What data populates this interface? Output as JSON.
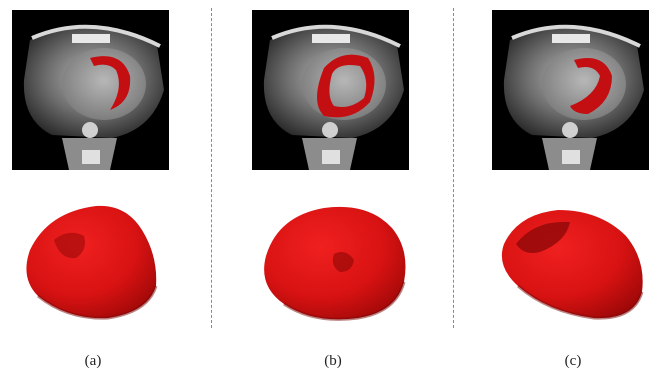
{
  "panels": [
    {
      "caption": "(a)"
    },
    {
      "caption": "(b)"
    },
    {
      "caption": "(c)"
    }
  ],
  "colors": {
    "segmentation": "#c40f12",
    "mesh_base": "#e01414",
    "mesh_shadow": "#8e0808",
    "background": "#ffffff",
    "scan_background": "#000000"
  },
  "icons": [
    "ct-slice-image",
    "3d-mesh-render"
  ]
}
